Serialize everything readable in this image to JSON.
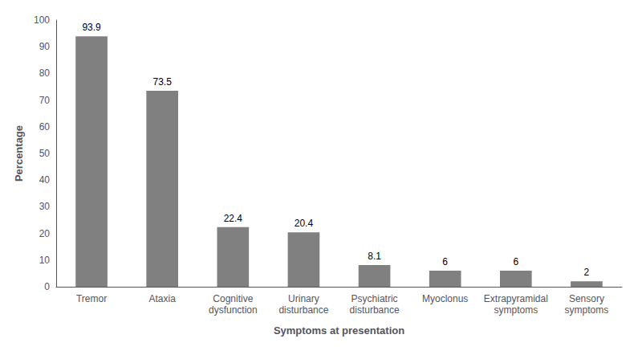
{
  "chart_data": {
    "type": "bar",
    "categories": [
      "Tremor",
      "Ataxia",
      "Cognitive\ndysfunction",
      "Urinary\ndisturbance",
      "Psychiatric\ndisturbance",
      "Myoclonus",
      "Extrapyramidal\nsymptoms",
      "Sensory\nsymptoms"
    ],
    "values": [
      93.9,
      73.5,
      22.4,
      20.4,
      8.1,
      6,
      6,
      2
    ],
    "color": "#808080",
    "xlabel": "Symptoms at presentation",
    "ylabel": "Percentage",
    "ylim": [
      0,
      100
    ],
    "yticks": [
      0,
      10,
      20,
      30,
      40,
      50,
      60,
      70,
      80,
      90,
      100
    ],
    "data_labels": true,
    "grid": false
  }
}
